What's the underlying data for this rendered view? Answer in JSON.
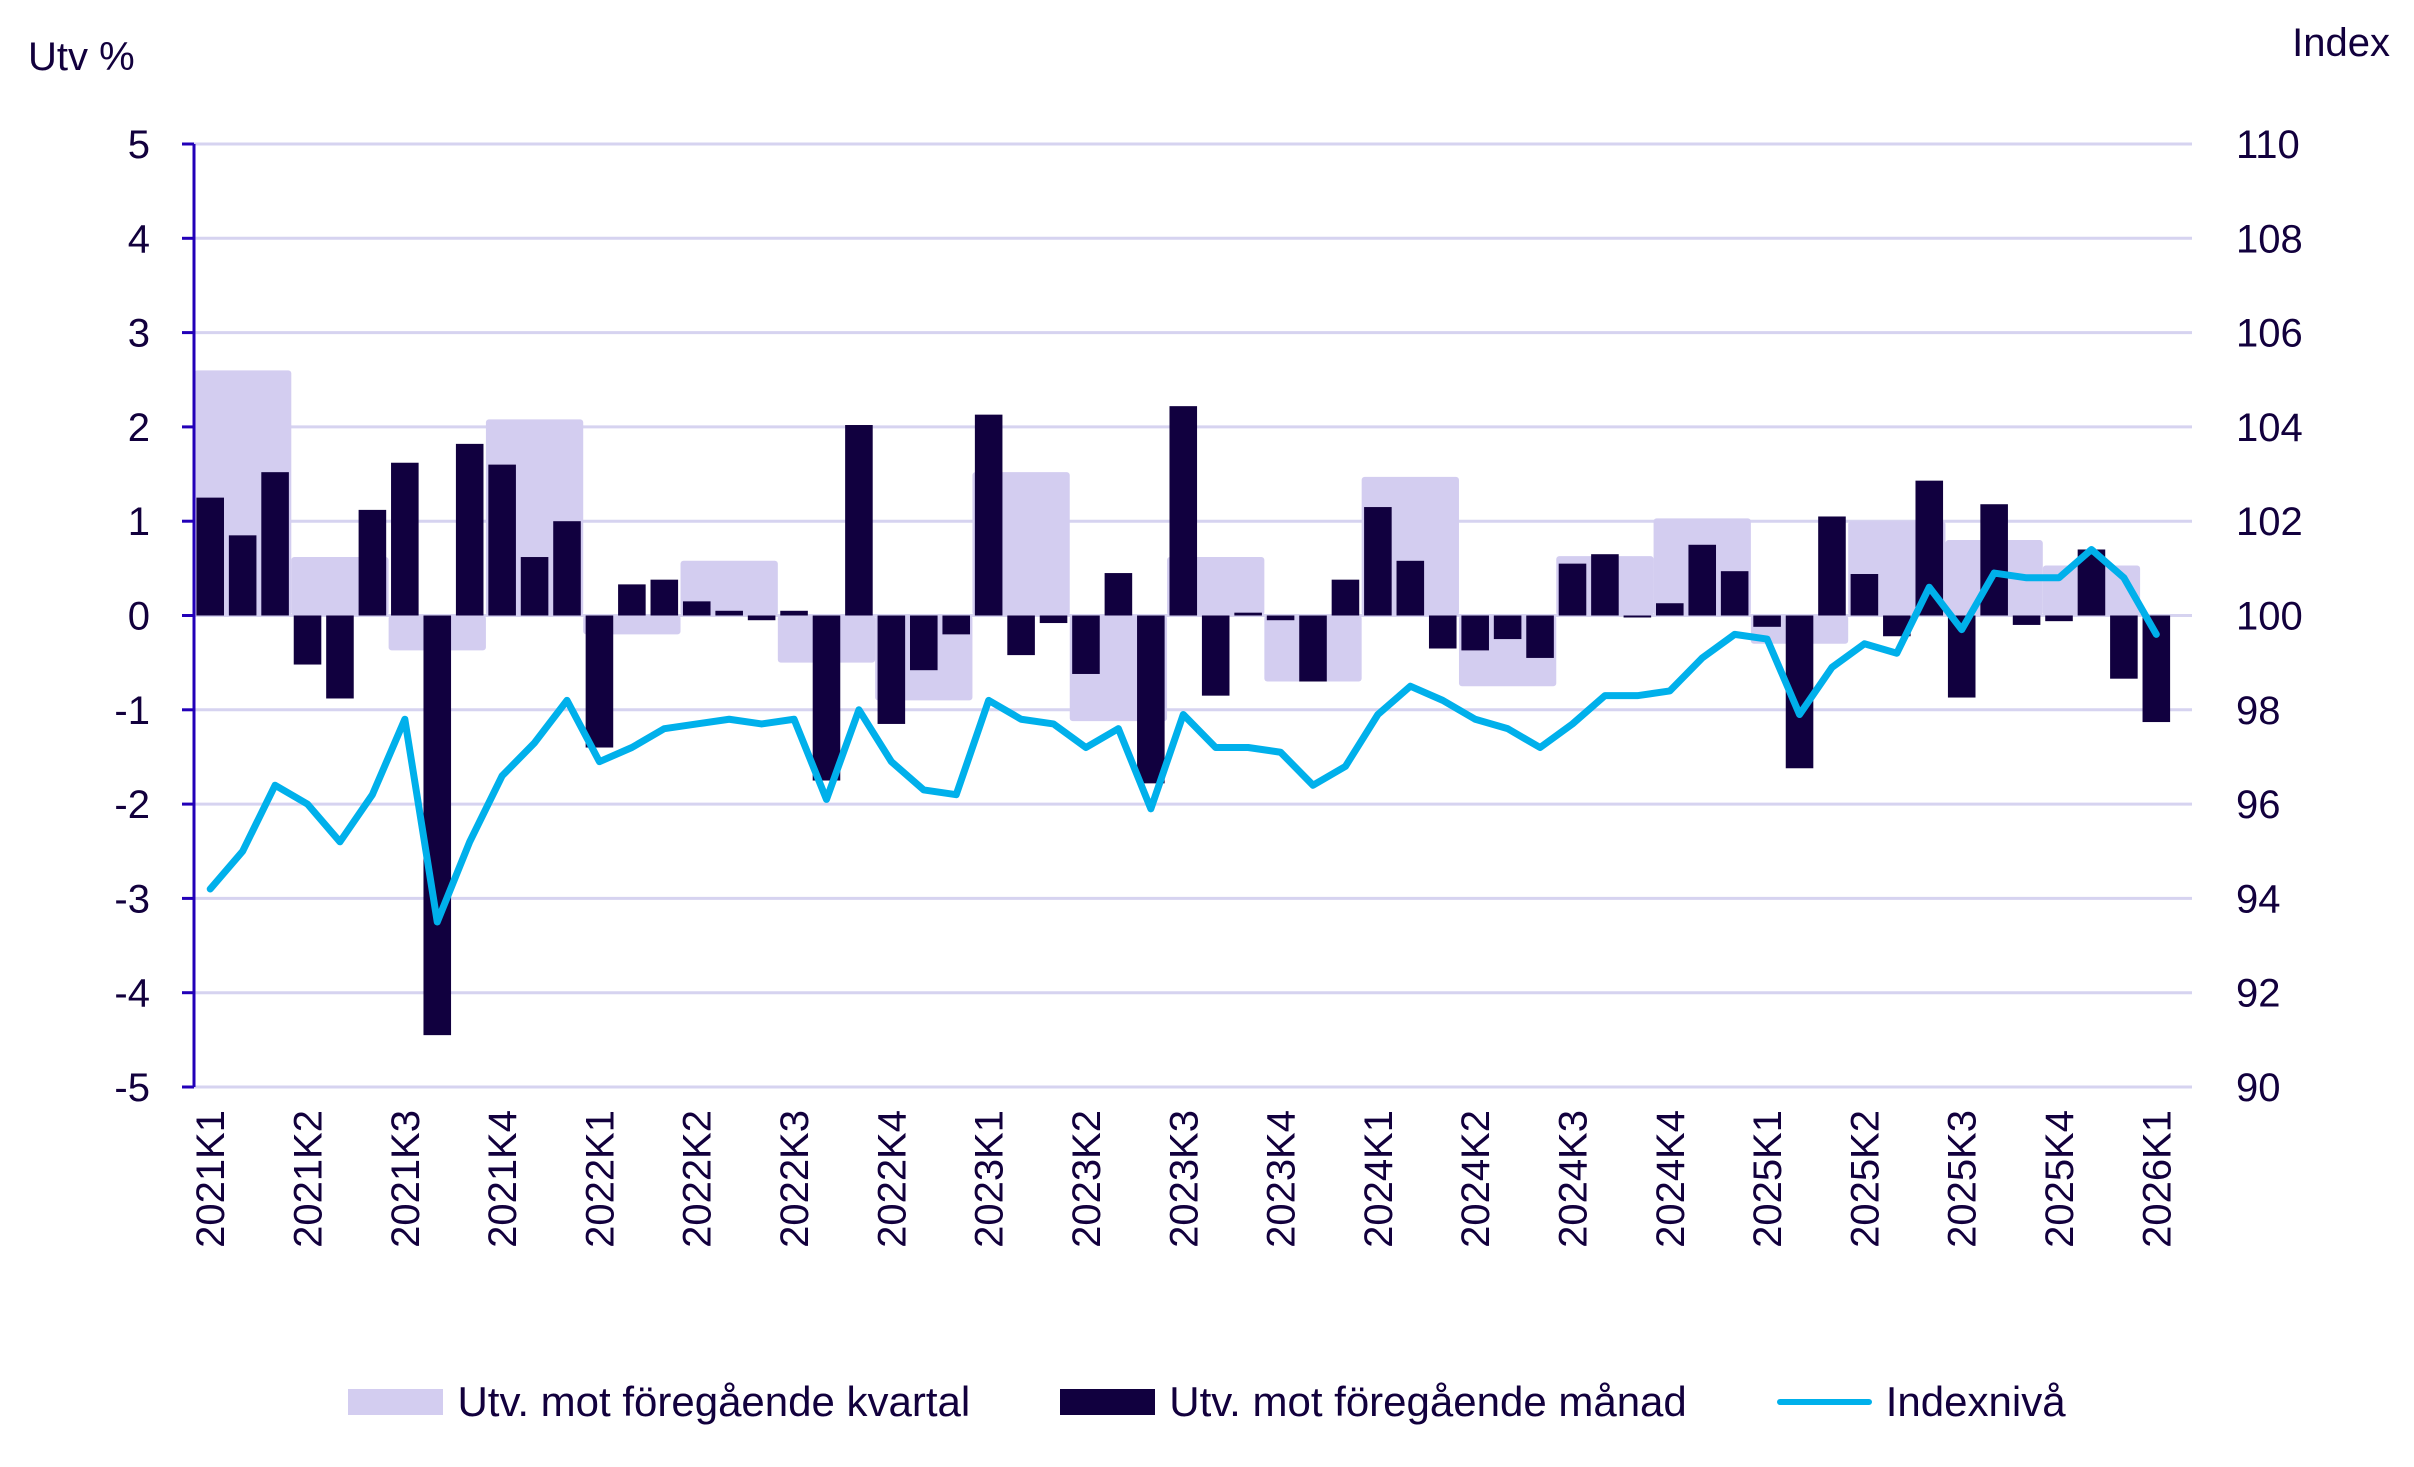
{
  "chart_data": {
    "type": "bar",
    "title": "",
    "left_axis_label": "Utv %",
    "right_axis_label": "Index",
    "left_ylim": [
      -5,
      5
    ],
    "left_ticks": [
      "5",
      "4",
      "3",
      "2",
      "1",
      "0",
      "-1",
      "-2",
      "-3",
      "-4",
      "-5"
    ],
    "right_ylim": [
      90,
      110
    ],
    "right_ticks": [
      "110",
      "108",
      "106",
      "104",
      "102",
      "100",
      "98",
      "96",
      "94",
      "92",
      "90"
    ],
    "grid": true,
    "legend_position": "bottom",
    "x_labels": [
      "2021K1",
      "2021K2",
      "2021K3",
      "2021K4",
      "2022K1",
      "2022K2",
      "2022K3",
      "2022K4",
      "2023K1",
      "2023K2",
      "2023K3",
      "2023K4",
      "2024K1",
      "2024K2",
      "2024K3",
      "2024K4",
      "2025K1",
      "2025K2",
      "2025K3",
      "2025K4",
      "2026K1"
    ],
    "series": [
      {
        "name": "Utv. mot föregående kvartal",
        "type": "bar",
        "axis": "left",
        "color": "#d3cdf0",
        "values": [
          2.6,
          0.62,
          -0.37,
          2.08,
          -0.2,
          0.58,
          -0.5,
          -0.9,
          1.52,
          -1.12,
          0.62,
          -0.7,
          1.47,
          -0.75,
          0.63,
          1.03,
          -0.3,
          1.0,
          0.8,
          0.53
        ]
      },
      {
        "name": "Utv. mot föregående månad",
        "type": "bar",
        "axis": "left",
        "color": "#11003f",
        "values": [
          1.25,
          0.85,
          1.52,
          -0.52,
          -0.88,
          1.12,
          1.62,
          -4.45,
          1.82,
          1.6,
          0.62,
          1.0,
          -1.4,
          0.33,
          0.38,
          0.15,
          0.05,
          -0.05,
          0.05,
          -1.75,
          2.02,
          -1.15,
          -0.58,
          -0.2,
          2.13,
          -0.42,
          -0.08,
          -0.62,
          0.45,
          -1.78,
          2.22,
          -0.85,
          0.03,
          -0.05,
          -0.7,
          0.38,
          1.15,
          0.58,
          -0.35,
          -0.37,
          -0.25,
          -0.45,
          0.55,
          0.65,
          -0.02,
          0.13,
          0.75,
          0.47,
          -0.12,
          -1.62,
          1.05,
          0.44,
          -0.22,
          1.43,
          -0.87,
          1.18,
          -0.1,
          -0.06,
          0.7,
          -0.67,
          -1.13
        ]
      },
      {
        "name": "Indexnivå",
        "type": "line",
        "axis": "right",
        "color": "#00b0eb",
        "values": [
          94.2,
          95.0,
          96.4,
          96.0,
          95.2,
          96.2,
          97.8,
          93.5,
          95.2,
          96.6,
          97.3,
          98.2,
          96.9,
          97.2,
          97.6,
          97.7,
          97.8,
          97.7,
          97.8,
          96.1,
          98.0,
          96.9,
          96.3,
          96.2,
          98.2,
          97.8,
          97.7,
          97.2,
          97.6,
          95.9,
          97.9,
          97.2,
          97.2,
          97.1,
          96.4,
          96.8,
          97.9,
          98.5,
          98.2,
          97.8,
          97.6,
          97.2,
          97.7,
          98.3,
          98.3,
          98.4,
          99.1,
          99.6,
          99.5,
          97.9,
          98.9,
          99.4,
          99.2,
          100.6,
          99.7,
          100.9,
          100.8,
          100.8,
          101.4,
          100.8,
          99.6
        ]
      }
    ]
  },
  "legend": {
    "quarterly_label": "Utv. mot föregående kvartal",
    "monthly_label": "Utv. mot föregående månad",
    "index_label": "Indexnivå"
  }
}
